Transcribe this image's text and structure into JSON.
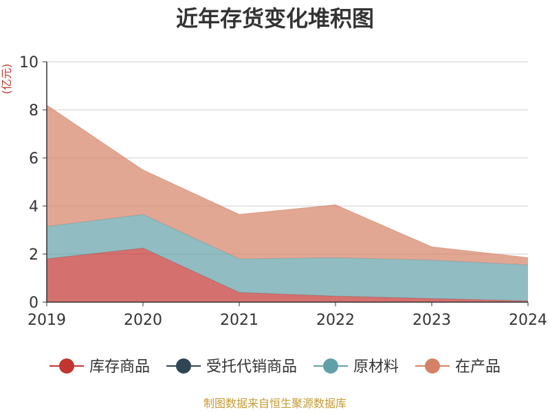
{
  "chart_data": {
    "type": "area",
    "stacked": true,
    "title": "近年存货变化堆积图",
    "ylabel": "(亿元)",
    "x": [
      "2019",
      "2020",
      "2021",
      "2022",
      "2023",
      "2024"
    ],
    "ylim": [
      0,
      10
    ],
    "yticks": [
      0,
      2,
      4,
      6,
      8,
      10
    ],
    "grid": true,
    "legend_position": "bottom",
    "series": [
      {
        "name": "库存商品",
        "color": "#c23531",
        "values": [
          1.8,
          2.25,
          0.4,
          0.25,
          0.15,
          0.05
        ]
      },
      {
        "name": "受托代销商品",
        "color": "#2f4554",
        "values": [
          0,
          0,
          0,
          0,
          0,
          0
        ]
      },
      {
        "name": "原材料",
        "color": "#61a0a8",
        "values": [
          1.35,
          1.4,
          1.4,
          1.6,
          1.6,
          1.5
        ]
      },
      {
        "name": "在产品",
        "color": "#d48265",
        "values": [
          5.05,
          1.85,
          1.85,
          2.2,
          0.55,
          0.3
        ]
      }
    ]
  },
  "source": "制图数据来自恒生聚源数据库"
}
